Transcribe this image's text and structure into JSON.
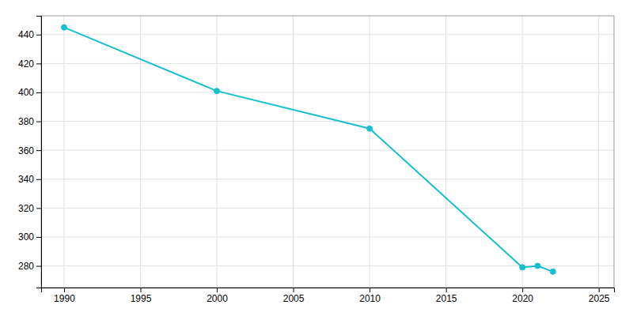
{
  "chart_data": {
    "type": "line",
    "x": [
      1990,
      2000,
      2010,
      2020,
      2021,
      2022
    ],
    "values": [
      445,
      401,
      375,
      279,
      280,
      276
    ],
    "color": "#17BECF",
    "marker": "circle",
    "xlim": [
      1988.5,
      2026
    ],
    "ylim": [
      265,
      453
    ],
    "xticks": [
      1990,
      1995,
      2000,
      2005,
      2010,
      2015,
      2020,
      2025
    ],
    "yticks": [
      280,
      300,
      320,
      340,
      360,
      380,
      400,
      420,
      440
    ],
    "grid": true
  }
}
